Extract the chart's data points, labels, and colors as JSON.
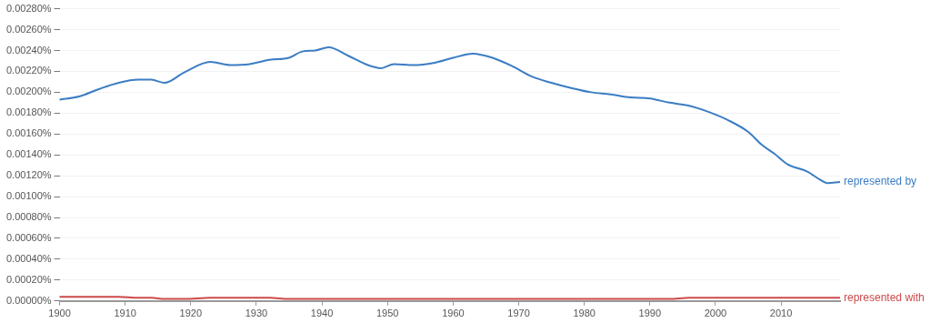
{
  "chart_data": {
    "type": "line",
    "x": [
      1900,
      1903,
      1906,
      1909,
      1912,
      1914,
      1916,
      1919,
      1923,
      1926,
      1929,
      1932,
      1935,
      1937,
      1939,
      1941,
      1944,
      1947,
      1949,
      1951,
      1954,
      1957,
      1960,
      1963,
      1966,
      1969,
      1972,
      1975,
      1978,
      1981,
      1984,
      1987,
      1990,
      1993,
      1996,
      1999,
      2002,
      2005,
      2007,
      2009,
      2011,
      2014,
      2016,
      2017,
      2019
    ],
    "series": [
      {
        "name": "represented by",
        "color": "#3b7dc4",
        "values": [
          0.00193,
          0.00196,
          0.00203,
          0.00209,
          0.00212,
          0.00212,
          0.00209,
          0.00219,
          0.00229,
          0.00226,
          0.00227,
          0.00231,
          0.00233,
          0.00239,
          0.0024,
          0.00243,
          0.00235,
          0.00226,
          0.00223,
          0.00227,
          0.00226,
          0.00228,
          0.00233,
          0.00237,
          0.00233,
          0.00225,
          0.00215,
          0.00209,
          0.00204,
          0.002,
          0.00198,
          0.00195,
          0.00194,
          0.0019,
          0.00187,
          0.00181,
          0.00173,
          0.00162,
          0.0015,
          0.00141,
          0.00131,
          0.00124,
          0.00116,
          0.00113,
          0.00114
        ]
      },
      {
        "name": "represented with",
        "color": "#cc4a4a",
        "values": [
          4e-05,
          4e-05,
          4e-05,
          4e-05,
          3e-05,
          3e-05,
          2e-05,
          2e-05,
          3e-05,
          3e-05,
          3e-05,
          3e-05,
          2e-05,
          2e-05,
          2e-05,
          2e-05,
          2e-05,
          2e-05,
          2e-05,
          2e-05,
          2e-05,
          2e-05,
          2e-05,
          2e-05,
          2e-05,
          2e-05,
          2e-05,
          2e-05,
          2e-05,
          2e-05,
          2e-05,
          2e-05,
          2e-05,
          2e-05,
          3e-05,
          3e-05,
          3e-05,
          3e-05,
          3e-05,
          3e-05,
          3e-05,
          3e-05,
          3e-05,
          3e-05,
          3e-05
        ]
      }
    ],
    "xlim": [
      1900,
      2019
    ],
    "xticks": [
      1900,
      1910,
      1920,
      1930,
      1940,
      1950,
      1960,
      1970,
      1980,
      1990,
      2000,
      2010
    ],
    "ylim": [
      0,
      0.0028
    ],
    "yticks": [
      {
        "value": 0,
        "label": "0.00000%"
      },
      {
        "value": 0.0002,
        "label": "0.00020%"
      },
      {
        "value": 0.0004,
        "label": "0.00040%"
      },
      {
        "value": 0.0006,
        "label": "0.00060%"
      },
      {
        "value": 0.0008,
        "label": "0.00080%"
      },
      {
        "value": 0.001,
        "label": "0.00100%"
      },
      {
        "value": 0.0012,
        "label": "0.00120%"
      },
      {
        "value": 0.0014,
        "label": "0.00140%"
      },
      {
        "value": 0.0016,
        "label": "0.00160%"
      },
      {
        "value": 0.0018,
        "label": "0.00180%"
      },
      {
        "value": 0.002,
        "label": "0.00200%"
      },
      {
        "value": 0.0022,
        "label": "0.00220%"
      },
      {
        "value": 0.0024,
        "label": "0.00240%"
      },
      {
        "value": 0.0026,
        "label": "0.00260%"
      },
      {
        "value": 0.0028,
        "label": "0.00280%"
      }
    ],
    "grid": "y",
    "legend": false,
    "marker": "none",
    "line_style": "solid"
  }
}
